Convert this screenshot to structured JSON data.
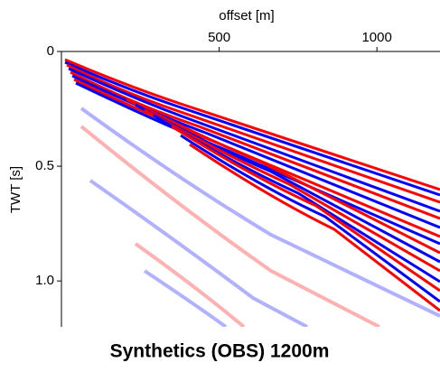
{
  "chart_data": {
    "type": "image",
    "title": "Synthetics (OBS) 1200m",
    "x_label": "offset [m]",
    "y_label": "TWT [s]",
    "xlim": [
      0,
      1200
    ],
    "xticks": [
      500,
      1000
    ],
    "ylim": [
      0,
      1.2
    ],
    "yticks": [
      0,
      0.5,
      {
        "value": 1,
        "label": "1.0"
      }
    ]
  }
}
